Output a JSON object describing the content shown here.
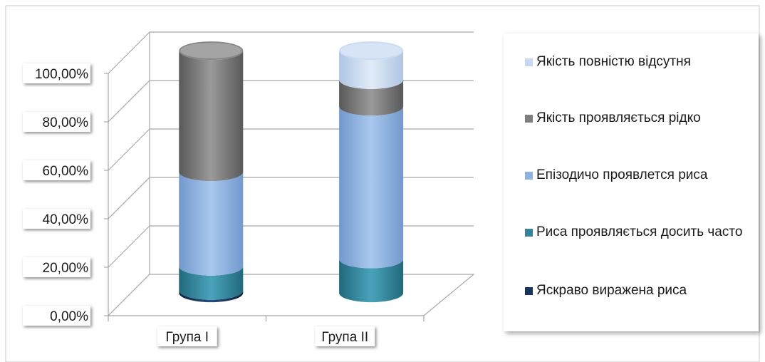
{
  "chart_data": {
    "type": "bar",
    "stacked": true,
    "three_d": true,
    "bar_shape": "cylinder",
    "categories": [
      "Група I",
      "Група II"
    ],
    "series": [
      {
        "name": "Яскраво виражена риса",
        "color": "#17365d",
        "values": [
          0.01,
          0.0
        ]
      },
      {
        "name": "Риса проявляється досить часто",
        "color": "#31859c",
        "values": [
          0.1,
          0.14
        ]
      },
      {
        "name": "Епізодичо проявлется риса",
        "color": "#8db3e2",
        "values": [
          0.39,
          0.63
        ]
      },
      {
        "name": "Якість проявляється рідко",
        "color": "#7f7f7f",
        "values": [
          0.5,
          0.11
        ]
      },
      {
        "name": "Якість повністю відсутня",
        "color": "#c6d9f1",
        "values": [
          0.0,
          0.12
        ]
      }
    ],
    "y_ticks": [
      "0,00%",
      "20,00%",
      "40,00%",
      "60,00%",
      "80,00%",
      "100,00%"
    ],
    "ylim": [
      0,
      1
    ],
    "grid": true,
    "legend_position": "right"
  }
}
